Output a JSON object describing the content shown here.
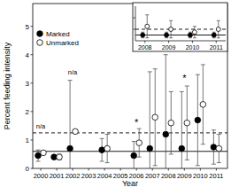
{
  "chart_data": [
    {
      "type": "scatter",
      "x_label": "Year",
      "y_label": "Percent feeding intensity",
      "x": [
        2000,
        2001,
        2002,
        2004,
        2006,
        2007,
        2008,
        2009,
        2010,
        2011
      ],
      "xlim": [
        1999.5,
        2011.7
      ],
      "xticks": [
        2000,
        2001,
        2002,
        2003,
        2004,
        2005,
        2006,
        2007,
        2008,
        2009,
        2010,
        2011
      ],
      "ylim": [
        0,
        5.8
      ],
      "yticks": [
        0,
        1,
        2,
        3,
        4,
        5
      ],
      "legend": "upper left",
      "series": [
        {
          "name": "Marked",
          "color": "#000000",
          "marker": "circle",
          "values": [
            0.45,
            0.4,
            0.7,
            0.65,
            0.45,
            0.7,
            1.2,
            0.7,
            1.7,
            0.75
          ],
          "errors": [
            0.2,
            0.05,
            2.4,
            0.4,
            0.5,
            2.7,
            2.8,
            2.0,
            1.6,
            0.6
          ]
        },
        {
          "name": "Unmarked",
          "color": "#000000",
          "marker": "open_circle",
          "values": [
            0.55,
            0.4,
            1.3,
            0.7,
            0.9,
            1.8,
            1.6,
            1.6,
            2.25,
            0.7
          ],
          "errors": [
            null,
            0.1,
            null,
            0.5,
            0.5,
            1.7,
            1.1,
            1.3,
            1.4,
            0.5
          ]
        }
      ],
      "hlines": [
        {
          "value": 0.6,
          "line_style": "solid"
        },
        {
          "value": 1.25,
          "line_style": "dashed"
        }
      ],
      "annotations": [
        {
          "text": "n/a",
          "x": 2000,
          "y": 1.4
        },
        {
          "text": "n/a",
          "x": 2002,
          "y": 3.3
        },
        {
          "text": "*",
          "x": 2006,
          "y": 1.5
        },
        {
          "text": "*",
          "x": 2009,
          "y": 3.05
        }
      ]
    },
    {
      "type": "scatter",
      "x": [
        2008,
        2009,
        2010,
        2011
      ],
      "xlim": [
        2007.6,
        2011.4
      ],
      "xticks": [
        2008,
        2009,
        2010,
        2011
      ],
      "ylim": [
        0,
        0.6
      ],
      "yticks": [
        0.2,
        0.4
      ],
      "tick_labels": "x",
      "series": [
        {
          "color": "#000000",
          "marker": "circle",
          "values": [
            0.1,
            0.1,
            0.1,
            0.1
          ],
          "errors": [
            0.05,
            0.05,
            0.05,
            0.05
          ]
        },
        {
          "color": "#000000",
          "marker": "open_circle",
          "values": [
            0.25,
            0.2,
            0.15,
            0.2
          ],
          "errors": [
            0.2,
            0.15,
            0.1,
            0.15
          ]
        }
      ],
      "hlines": [
        {
          "value": 0.1,
          "line_style": "solid"
        },
        {
          "value": 0.2,
          "line_style": "dashed"
        }
      ]
    }
  ]
}
